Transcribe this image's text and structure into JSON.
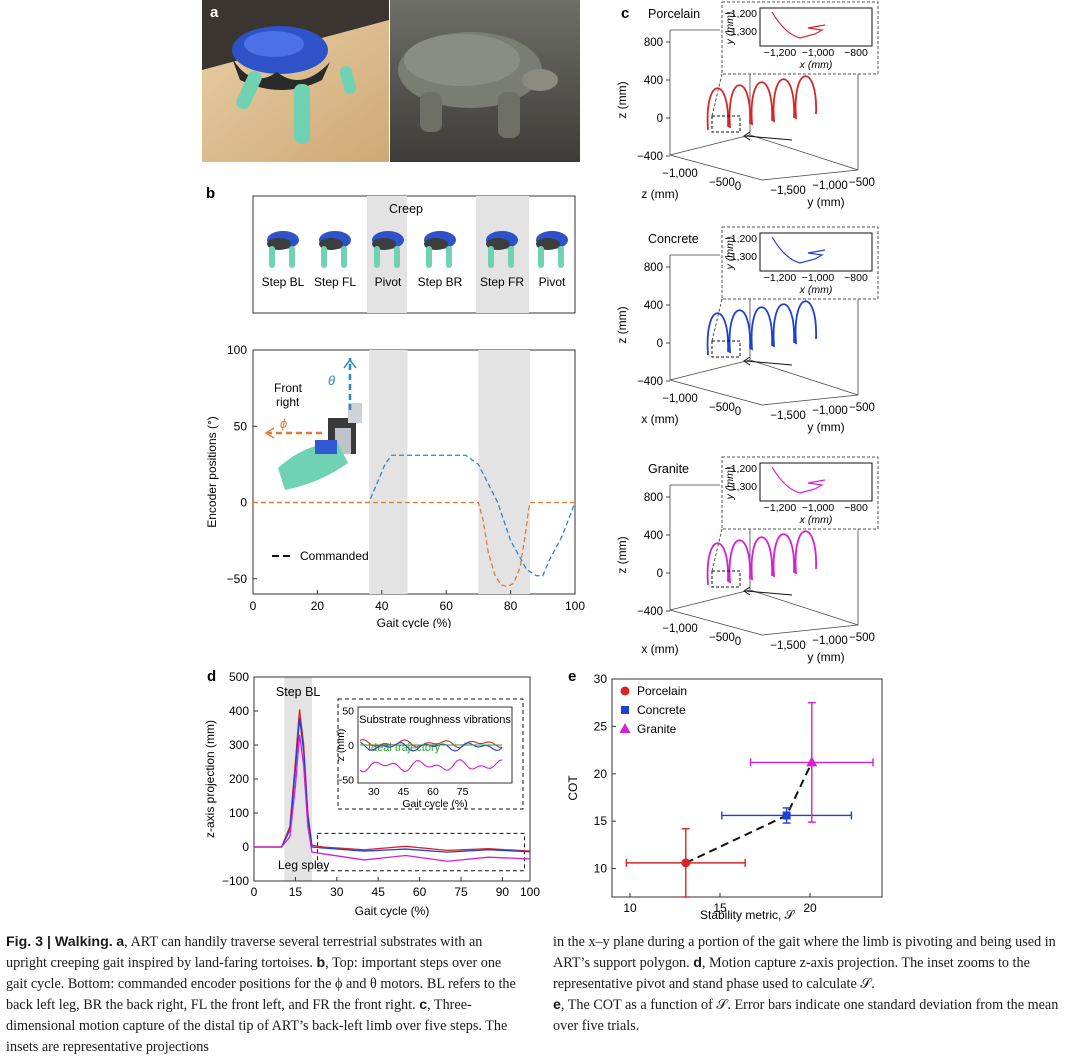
{
  "figure": {
    "panel_labels": {
      "a": "a",
      "b": "b",
      "c": "c",
      "d": "d",
      "e": "e"
    }
  },
  "panel_b": {
    "gait_title": "Creep",
    "steps": [
      "Step BL",
      "Step FL",
      "Pivot",
      "Step BR",
      "Step FR",
      "Pivot"
    ],
    "robot_label": "Front right",
    "theta_label": "θ",
    "phi_label": "ϕ",
    "legend_commanded": "Commanded"
  },
  "panel_c": {
    "substrates": [
      "Porcelain",
      "Concrete",
      "Granite"
    ],
    "inset_x_label": "x (mm)",
    "inset_y_label": "y (mm)",
    "inset_x_ticks": [
      "−1,200",
      "−1,000",
      "−800"
    ],
    "inset_y_ticks": [
      "−1,200",
      "−1,300"
    ],
    "z_ticks": [
      "800",
      "400",
      "0",
      "−400"
    ],
    "z_label": "z (mm)",
    "front_axis_ticks": [
      "−1,000",
      "−500",
      "0"
    ],
    "front_axis_labels": [
      "z (mm)",
      "x (mm)",
      "x (mm)"
    ],
    "y_axis_ticks": [
      "−1,500",
      "−1,000",
      "−500"
    ],
    "y_axis_label": "y (mm)"
  },
  "chart_data": [
    {
      "id": "b-encoder",
      "type": "line",
      "xlabel": "Gait cycle (%)",
      "ylabel": "Encoder positions (°)",
      "xlim": [
        0,
        100
      ],
      "ylim": [
        -60,
        100
      ],
      "xticks": [
        0,
        20,
        40,
        60,
        80,
        100
      ],
      "yticks": [
        -50,
        0,
        50,
        100
      ],
      "shaded": [
        [
          36,
          48
        ],
        [
          70,
          86
        ]
      ],
      "series": [
        {
          "name": "θ commanded",
          "color": "#2f86c8",
          "x": [
            0,
            36,
            41,
            43,
            66,
            70,
            76,
            80,
            85,
            88,
            90,
            92,
            96,
            100
          ],
          "y": [
            0,
            0,
            25,
            31,
            31,
            25,
            0,
            -25,
            -44,
            -48,
            -48,
            -38,
            -22,
            0
          ]
        },
        {
          "name": "ϕ commanded",
          "color": "#e07b39",
          "x": [
            0,
            70,
            71.5,
            73,
            75,
            77,
            79,
            81,
            83,
            84.5,
            85.5,
            86,
            100
          ],
          "y": [
            0,
            0,
            -12,
            -32,
            -47,
            -54,
            -55,
            -53,
            -42,
            -22,
            -6,
            0,
            0
          ]
        }
      ]
    },
    {
      "id": "d-zprojection",
      "type": "line",
      "title": "Step BL",
      "annotation": "Leg splay",
      "xlabel": "Gait cycle (%)",
      "ylabel": "z-axis projection (mm)",
      "xlim": [
        0,
        100
      ],
      "ylim": [
        -100,
        500
      ],
      "xticks": [
        0,
        15,
        30,
        45,
        60,
        75,
        90,
        100
      ],
      "yticks": [
        -100,
        0,
        100,
        200,
        300,
        400,
        500
      ],
      "shaded": [
        [
          11,
          21
        ]
      ],
      "series": [
        {
          "name": "Porcelain",
          "color": "#d62728",
          "x": [
            0,
            10,
            13,
            15,
            16.5,
            18,
            19.5,
            21,
            25,
            40,
            55,
            70,
            85,
            100
          ],
          "y": [
            0,
            0,
            60,
            250,
            405,
            300,
            100,
            5,
            0,
            -8,
            2,
            -10,
            -5,
            -12
          ]
        },
        {
          "name": "Concrete",
          "color": "#1f3fd6",
          "x": [
            0,
            10,
            13,
            15,
            16.5,
            18,
            19.5,
            21,
            25,
            40,
            55,
            70,
            85,
            100
          ],
          "y": [
            0,
            0,
            50,
            230,
            380,
            280,
            90,
            0,
            -3,
            -12,
            -6,
            -15,
            -8,
            -14
          ]
        },
        {
          "name": "Granite",
          "color": "#d41fd4",
          "x": [
            0,
            10,
            13,
            15,
            16.5,
            18,
            19.5,
            21,
            25,
            40,
            55,
            70,
            85,
            100
          ],
          "y": [
            0,
            0,
            30,
            180,
            330,
            240,
            60,
            -15,
            -20,
            -38,
            -25,
            -42,
            -30,
            -35
          ]
        }
      ],
      "inset": {
        "title": "Substrate roughness vibrations",
        "annotation": "Ideal trajectory",
        "xlabel": "Gait cycle (%)",
        "ylabel": "z (mm)",
        "xticks": [
          30,
          45,
          60,
          75
        ],
        "yticks": [
          -50,
          0,
          50
        ],
        "xlim": [
          22,
          100
        ],
        "ylim": [
          -55,
          55
        ]
      }
    },
    {
      "id": "e-cot",
      "type": "scatter",
      "xlabel": "Stability metric, 𝒮",
      "ylabel": "COT",
      "xlim": [
        9,
        24
      ],
      "ylim": [
        7,
        30
      ],
      "xticks": [
        10,
        15,
        20
      ],
      "yticks": [
        10,
        15,
        20,
        25,
        30
      ],
      "series": [
        {
          "name": "Porcelain",
          "color": "#d62728",
          "marker": "circle",
          "x": 13.1,
          "y": 10.6,
          "xerr": 3.3,
          "yerr": 3.6
        },
        {
          "name": "Concrete",
          "color": "#1f3fd6",
          "marker": "square",
          "x": 18.7,
          "y": 15.6,
          "xerr": 3.6,
          "yerr": 0.8
        },
        {
          "name": "Granite",
          "color": "#d41fd4",
          "marker": "triangle",
          "x": 20.1,
          "y": 21.2,
          "xerr": 3.4,
          "yerr": 6.3
        }
      ],
      "trend": "dashed line through means"
    }
  ],
  "caption": {
    "left": {
      "fig_label": "Fig. 3 | Walking.",
      "a_label": "a",
      "a_text": ", ART can handily traverse several terrestrial substrates with an upright creeping gait inspired by land-faring tortoises. ",
      "b_label": "b",
      "b_text": ", Top: important steps over one gait cycle. Bottom: commanded encoder positions for the ϕ and θ motors. BL refers to the back left leg, BR the back right, FL the front left, and FR the front right. ",
      "c_label": "c",
      "c_text": ", Three-dimensional motion capture of the distal tip of ART’s back-left limb over five steps. The insets are representative projections"
    },
    "right": {
      "text1": "in the x–y plane during a portion of the gait where the limb is pivoting and being used in ART’s support polygon. ",
      "d_label": "d",
      "d_text": ", Motion capture z-axis projection. The inset zooms to the representative pivot and stand phase used to calculate 𝒮.",
      "e_label": "e",
      "e_text": ", The COT as a function of 𝒮. Error bars indicate one standard deviation from the mean over five trials."
    }
  }
}
